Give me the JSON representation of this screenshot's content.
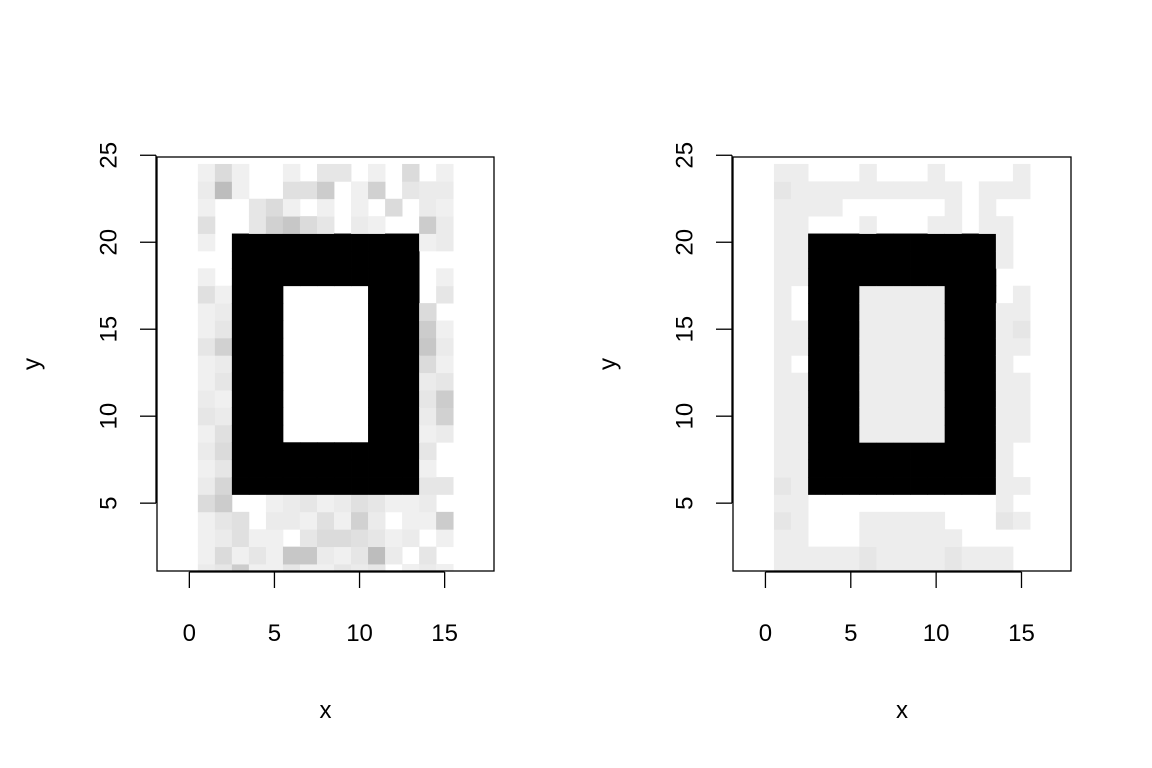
{
  "chart_data": [
    {
      "type": "heatmap",
      "title": "",
      "xlabel": "x",
      "ylabel": "y",
      "xlim": [
        -1.9,
        17.9
      ],
      "ylim": [
        1.1,
        24.9
      ],
      "xticks": [
        0,
        5,
        10,
        15
      ],
      "yticks": [
        5,
        10,
        15,
        20,
        25
      ],
      "grid": false,
      "legend": "none",
      "cell_x": {
        "start": 1,
        "end": 15
      },
      "cell_y": {
        "start": 1,
        "end": 24
      },
      "color_low": "#ffffff",
      "color_high": "#000000",
      "background_level": 0.0,
      "frame": {
        "level": 1.0,
        "x_from": 3,
        "x_to": 13,
        "y_from": 6,
        "y_to": 20
      },
      "hole": {
        "level": 0.0,
        "x_from": 6,
        "x_to": 10,
        "y_from": 9,
        "y_to": 17
      },
      "cells": [
        [
          1,
          24,
          0.06
        ],
        [
          2,
          24,
          0.14
        ],
        [
          3,
          24,
          0.06
        ],
        [
          6,
          24,
          0.06
        ],
        [
          8,
          24,
          0.1
        ],
        [
          9,
          24,
          0.1
        ],
        [
          11,
          24,
          0.06
        ],
        [
          13,
          24,
          0.14
        ],
        [
          15,
          24,
          0.06
        ],
        [
          1,
          23,
          0.08
        ],
        [
          2,
          23,
          0.26
        ],
        [
          3,
          23,
          0.06
        ],
        [
          6,
          23,
          0.12
        ],
        [
          7,
          23,
          0.12
        ],
        [
          8,
          23,
          0.2
        ],
        [
          10,
          23,
          0.06
        ],
        [
          11,
          23,
          0.18
        ],
        [
          13,
          23,
          0.1
        ],
        [
          14,
          23,
          0.08
        ],
        [
          15,
          23,
          0.08
        ],
        [
          1,
          22,
          0.06
        ],
        [
          4,
          22,
          0.1
        ],
        [
          5,
          22,
          0.14
        ],
        [
          6,
          22,
          0.06
        ],
        [
          8,
          22,
          0.06
        ],
        [
          10,
          22,
          0.06
        ],
        [
          12,
          22,
          0.14
        ],
        [
          14,
          22,
          0.08
        ],
        [
          15,
          22,
          0.06
        ],
        [
          1,
          21,
          0.12
        ],
        [
          4,
          21,
          0.1
        ],
        [
          5,
          21,
          0.18
        ],
        [
          6,
          21,
          0.22
        ],
        [
          7,
          21,
          0.14
        ],
        [
          8,
          21,
          0.1
        ],
        [
          10,
          21,
          0.08
        ],
        [
          11,
          21,
          0.06
        ],
        [
          14,
          21,
          0.2
        ],
        [
          15,
          21,
          0.08
        ],
        [
          1,
          20,
          0.06
        ],
        [
          4,
          20,
          0.08
        ],
        [
          6,
          20,
          0.12
        ],
        [
          10,
          20,
          0.08
        ],
        [
          11,
          20,
          0.08
        ],
        [
          14,
          20,
          0.06
        ],
        [
          15,
          20,
          0.08
        ],
        [
          1,
          18,
          0.06
        ],
        [
          15,
          18,
          0.06
        ],
        [
          1,
          17,
          0.12
        ],
        [
          2,
          17,
          0.06
        ],
        [
          15,
          17,
          0.1
        ],
        [
          1,
          16,
          0.06
        ],
        [
          2,
          16,
          0.08
        ],
        [
          14,
          16,
          0.14
        ],
        [
          1,
          15,
          0.06
        ],
        [
          2,
          15,
          0.1
        ],
        [
          14,
          15,
          0.2
        ],
        [
          15,
          15,
          0.06
        ],
        [
          1,
          14,
          0.1
        ],
        [
          2,
          14,
          0.18
        ],
        [
          14,
          14,
          0.22
        ],
        [
          15,
          14,
          0.08
        ],
        [
          1,
          13,
          0.06
        ],
        [
          2,
          13,
          0.08
        ],
        [
          14,
          13,
          0.14
        ],
        [
          15,
          13,
          0.06
        ],
        [
          1,
          12,
          0.06
        ],
        [
          2,
          12,
          0.1
        ],
        [
          14,
          12,
          0.08
        ],
        [
          15,
          12,
          0.1
        ],
        [
          1,
          11,
          0.08
        ],
        [
          2,
          11,
          0.06
        ],
        [
          14,
          11,
          0.1
        ],
        [
          15,
          11,
          0.2
        ],
        [
          1,
          10,
          0.1
        ],
        [
          2,
          10,
          0.08
        ],
        [
          14,
          10,
          0.08
        ],
        [
          15,
          10,
          0.18
        ],
        [
          1,
          9,
          0.06
        ],
        [
          2,
          9,
          0.12
        ],
        [
          14,
          9,
          0.06
        ],
        [
          15,
          9,
          0.08
        ],
        [
          1,
          8,
          0.08
        ],
        [
          2,
          8,
          0.14
        ],
        [
          14,
          8,
          0.1
        ],
        [
          1,
          7,
          0.06
        ],
        [
          2,
          7,
          0.1
        ],
        [
          14,
          7,
          0.06
        ],
        [
          1,
          6,
          0.08
        ],
        [
          2,
          6,
          0.16
        ],
        [
          14,
          6,
          0.1
        ],
        [
          15,
          6,
          0.1
        ],
        [
          1,
          5,
          0.14
        ],
        [
          2,
          5,
          0.2
        ],
        [
          5,
          5,
          0.06
        ],
        [
          6,
          5,
          0.08
        ],
        [
          7,
          5,
          0.1
        ],
        [
          8,
          5,
          0.06
        ],
        [
          9,
          5,
          0.08
        ],
        [
          10,
          5,
          0.12
        ],
        [
          11,
          5,
          0.1
        ],
        [
          12,
          5,
          0.06
        ],
        [
          13,
          5,
          0.06
        ],
        [
          14,
          5,
          0.08
        ],
        [
          1,
          4,
          0.06
        ],
        [
          2,
          4,
          0.1
        ],
        [
          3,
          4,
          0.12
        ],
        [
          5,
          4,
          0.08
        ],
        [
          6,
          4,
          0.08
        ],
        [
          7,
          4,
          0.06
        ],
        [
          8,
          4,
          0.12
        ],
        [
          9,
          4,
          0.06
        ],
        [
          10,
          4,
          0.18
        ],
        [
          11,
          4,
          0.08
        ],
        [
          13,
          4,
          0.06
        ],
        [
          14,
          4,
          0.06
        ],
        [
          15,
          4,
          0.2
        ],
        [
          1,
          3,
          0.06
        ],
        [
          2,
          3,
          0.08
        ],
        [
          3,
          3,
          0.12
        ],
        [
          4,
          3,
          0.06
        ],
        [
          5,
          3,
          0.06
        ],
        [
          7,
          3,
          0.1
        ],
        [
          8,
          3,
          0.14
        ],
        [
          9,
          3,
          0.14
        ],
        [
          10,
          3,
          0.12
        ],
        [
          11,
          3,
          0.1
        ],
        [
          12,
          3,
          0.06
        ],
        [
          13,
          3,
          0.08
        ],
        [
          15,
          3,
          0.06
        ],
        [
          1,
          2,
          0.06
        ],
        [
          2,
          2,
          0.14
        ],
        [
          3,
          2,
          0.06
        ],
        [
          4,
          2,
          0.1
        ],
        [
          5,
          2,
          0.06
        ],
        [
          6,
          2,
          0.22
        ],
        [
          7,
          2,
          0.22
        ],
        [
          8,
          2,
          0.08
        ],
        [
          9,
          2,
          0.06
        ],
        [
          10,
          2,
          0.1
        ],
        [
          11,
          2,
          0.26
        ],
        [
          12,
          2,
          0.08
        ],
        [
          14,
          2,
          0.1
        ],
        [
          1,
          1,
          0.08
        ],
        [
          2,
          1,
          0.1
        ],
        [
          3,
          1,
          0.2
        ],
        [
          4,
          1,
          0.06
        ],
        [
          5,
          1,
          0.06
        ],
        [
          6,
          1,
          0.1
        ],
        [
          7,
          1,
          0.06
        ],
        [
          8,
          1,
          0.06
        ],
        [
          9,
          1,
          0.1
        ],
        [
          10,
          1,
          0.08
        ],
        [
          11,
          1,
          0.1
        ],
        [
          13,
          1,
          0.06
        ],
        [
          14,
          1,
          0.08
        ],
        [
          15,
          1,
          0.06
        ]
      ]
    },
    {
      "type": "heatmap",
      "title": "",
      "xlabel": "x",
      "ylabel": "y",
      "xlim": [
        -1.9,
        17.9
      ],
      "ylim": [
        1.1,
        24.9
      ],
      "xticks": [
        0,
        5,
        10,
        15
      ],
      "yticks": [
        5,
        10,
        15,
        20,
        25
      ],
      "grid": false,
      "legend": "none",
      "cell_x": {
        "start": 1,
        "end": 15
      },
      "cell_y": {
        "start": 1,
        "end": 24
      },
      "color_low": "#ffffff",
      "color_high": "#000000",
      "background_level": 0.0,
      "frame": {
        "level": 1.0,
        "x_from": 3,
        "x_to": 13,
        "y_from": 6,
        "y_to": 20
      },
      "hole": {
        "level": 0.07,
        "x_from": 6,
        "x_to": 10,
        "y_from": 9,
        "y_to": 17
      },
      "cells": [
        [
          1,
          24,
          0.07
        ],
        [
          2,
          24,
          0.07
        ],
        [
          6,
          24,
          0.07
        ],
        [
          10,
          24,
          0.07
        ],
        [
          15,
          24,
          0.07
        ],
        [
          1,
          23,
          0.1
        ],
        [
          2,
          23,
          0.07
        ],
        [
          3,
          23,
          0.07
        ],
        [
          4,
          23,
          0.07
        ],
        [
          5,
          23,
          0.07
        ],
        [
          6,
          23,
          0.07
        ],
        [
          7,
          23,
          0.07
        ],
        [
          8,
          23,
          0.07
        ],
        [
          9,
          23,
          0.07
        ],
        [
          10,
          23,
          0.07
        ],
        [
          11,
          23,
          0.07
        ],
        [
          13,
          23,
          0.07
        ],
        [
          14,
          23,
          0.07
        ],
        [
          15,
          23,
          0.07
        ],
        [
          1,
          22,
          0.07
        ],
        [
          2,
          22,
          0.07
        ],
        [
          3,
          22,
          0.07
        ],
        [
          4,
          22,
          0.07
        ],
        [
          11,
          22,
          0.07
        ],
        [
          13,
          22,
          0.07
        ],
        [
          1,
          21,
          0.07
        ],
        [
          2,
          21,
          0.07
        ],
        [
          6,
          21,
          0.07
        ],
        [
          10,
          21,
          0.07
        ],
        [
          11,
          21,
          0.07
        ],
        [
          13,
          21,
          0.07
        ],
        [
          14,
          21,
          0.07
        ],
        [
          1,
          20,
          0.07
        ],
        [
          2,
          20,
          0.07
        ],
        [
          13,
          20,
          0.07
        ],
        [
          14,
          20,
          0.07
        ],
        [
          1,
          19,
          0.07
        ],
        [
          2,
          19,
          0.07
        ],
        [
          14,
          19,
          0.07
        ],
        [
          1,
          18,
          0.07
        ],
        [
          2,
          18,
          0.07
        ],
        [
          1,
          17,
          0.07
        ],
        [
          15,
          17,
          0.07
        ],
        [
          1,
          16,
          0.07
        ],
        [
          14,
          16,
          0.07
        ],
        [
          15,
          16,
          0.07
        ],
        [
          1,
          15,
          0.07
        ],
        [
          2,
          15,
          0.07
        ],
        [
          14,
          15,
          0.07
        ],
        [
          15,
          15,
          0.1
        ],
        [
          1,
          14,
          0.07
        ],
        [
          2,
          14,
          0.07
        ],
        [
          14,
          14,
          0.07
        ],
        [
          15,
          14,
          0.07
        ],
        [
          1,
          13,
          0.07
        ],
        [
          14,
          13,
          0.07
        ],
        [
          1,
          12,
          0.07
        ],
        [
          2,
          12,
          0.07
        ],
        [
          14,
          12,
          0.07
        ],
        [
          15,
          12,
          0.07
        ],
        [
          1,
          11,
          0.07
        ],
        [
          2,
          11,
          0.07
        ],
        [
          14,
          11,
          0.07
        ],
        [
          15,
          11,
          0.07
        ],
        [
          1,
          10,
          0.07
        ],
        [
          2,
          10,
          0.07
        ],
        [
          14,
          10,
          0.07
        ],
        [
          15,
          10,
          0.07
        ],
        [
          1,
          9,
          0.07
        ],
        [
          2,
          9,
          0.07
        ],
        [
          14,
          9,
          0.07
        ],
        [
          15,
          9,
          0.07
        ],
        [
          1,
          8,
          0.07
        ],
        [
          2,
          8,
          0.07
        ],
        [
          14,
          8,
          0.07
        ],
        [
          1,
          7,
          0.07
        ],
        [
          2,
          7,
          0.07
        ],
        [
          14,
          7,
          0.07
        ],
        [
          1,
          6,
          0.1
        ],
        [
          2,
          6,
          0.07
        ],
        [
          14,
          6,
          0.07
        ],
        [
          15,
          6,
          0.07
        ],
        [
          1,
          5,
          0.07
        ],
        [
          2,
          5,
          0.07
        ],
        [
          14,
          5,
          0.07
        ],
        [
          1,
          4,
          0.1
        ],
        [
          2,
          4,
          0.07
        ],
        [
          6,
          4,
          0.07
        ],
        [
          7,
          4,
          0.07
        ],
        [
          8,
          4,
          0.07
        ],
        [
          9,
          4,
          0.07
        ],
        [
          10,
          4,
          0.07
        ],
        [
          14,
          4,
          0.1
        ],
        [
          15,
          4,
          0.07
        ],
        [
          1,
          3,
          0.07
        ],
        [
          2,
          3,
          0.07
        ],
        [
          6,
          3,
          0.07
        ],
        [
          7,
          3,
          0.07
        ],
        [
          8,
          3,
          0.07
        ],
        [
          9,
          3,
          0.07
        ],
        [
          10,
          3,
          0.07
        ],
        [
          11,
          3,
          0.07
        ],
        [
          1,
          2,
          0.07
        ],
        [
          2,
          2,
          0.07
        ],
        [
          3,
          2,
          0.07
        ],
        [
          4,
          2,
          0.07
        ],
        [
          5,
          2,
          0.07
        ],
        [
          6,
          2,
          0.1
        ],
        [
          7,
          2,
          0.07
        ],
        [
          8,
          2,
          0.07
        ],
        [
          9,
          2,
          0.07
        ],
        [
          10,
          2,
          0.07
        ],
        [
          11,
          2,
          0.1
        ],
        [
          12,
          2,
          0.07
        ],
        [
          13,
          2,
          0.07
        ],
        [
          14,
          2,
          0.07
        ],
        [
          1,
          1,
          0.07
        ],
        [
          2,
          1,
          0.07
        ],
        [
          3,
          1,
          0.07
        ],
        [
          4,
          1,
          0.07
        ],
        [
          5,
          1,
          0.07
        ],
        [
          6,
          1,
          0.1
        ],
        [
          7,
          1,
          0.07
        ],
        [
          8,
          1,
          0.07
        ],
        [
          9,
          1,
          0.07
        ],
        [
          10,
          1,
          0.07
        ],
        [
          11,
          1,
          0.1
        ],
        [
          12,
          1,
          0.07
        ],
        [
          13,
          1,
          0.07
        ],
        [
          14,
          1,
          0.07
        ]
      ]
    }
  ]
}
